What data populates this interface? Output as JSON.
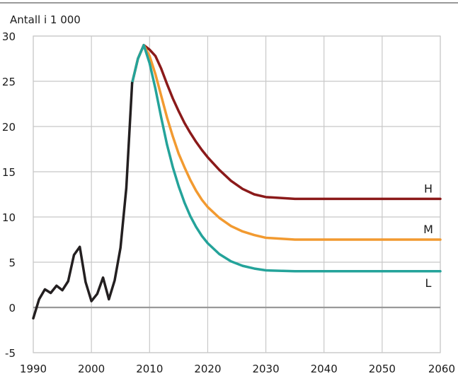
{
  "chart_data": {
    "type": "line",
    "unit_label": "Antall i 1 000",
    "xlim": [
      1990,
      2060
    ],
    "ylim": [
      -5,
      30
    ],
    "x_ticks": [
      1990,
      2000,
      2010,
      2020,
      2030,
      2040,
      2050,
      2060
    ],
    "y_ticks": [
      -5,
      0,
      5,
      10,
      15,
      20,
      25,
      30
    ],
    "grid": true,
    "colors": {
      "historical": "#231f20",
      "H": "#8b1a1a",
      "M": "#f29a30",
      "L": "#24a39a",
      "zero_line": "#999999",
      "grid": "#c8c8c8"
    },
    "series": [
      {
        "key": "historical",
        "points": [
          [
            1990,
            -1.2
          ],
          [
            1991,
            0.9
          ],
          [
            1992,
            2.0
          ],
          [
            1993,
            1.6
          ],
          [
            1994,
            2.4
          ],
          [
            1995,
            1.9
          ],
          [
            1996,
            2.9
          ],
          [
            1997,
            5.8
          ],
          [
            1998,
            6.7
          ],
          [
            1999,
            2.8
          ],
          [
            2000,
            0.7
          ],
          [
            2001,
            1.5
          ],
          [
            2002,
            3.3
          ],
          [
            2003,
            0.9
          ],
          [
            2004,
            3.0
          ],
          [
            2005,
            6.6
          ],
          [
            2006,
            13.2
          ],
          [
            2007,
            24.8
          ]
        ]
      },
      {
        "key": "H",
        "name": "H",
        "points": [
          [
            2007,
            24.8
          ],
          [
            2008,
            27.5
          ],
          [
            2009,
            29.0
          ],
          [
            2010,
            28.5
          ],
          [
            2011,
            27.8
          ],
          [
            2012,
            26.4
          ],
          [
            2013,
            24.7
          ],
          [
            2014,
            23.1
          ],
          [
            2015,
            21.7
          ],
          [
            2016,
            20.4
          ],
          [
            2017,
            19.3
          ],
          [
            2018,
            18.3
          ],
          [
            2019,
            17.4
          ],
          [
            2020,
            16.6
          ],
          [
            2022,
            15.2
          ],
          [
            2024,
            14.0
          ],
          [
            2026,
            13.1
          ],
          [
            2028,
            12.5
          ],
          [
            2030,
            12.2
          ],
          [
            2035,
            12.0
          ],
          [
            2040,
            12.0
          ],
          [
            2050,
            12.0
          ],
          [
            2060,
            12.0
          ]
        ]
      },
      {
        "key": "M",
        "name": "M",
        "points": [
          [
            2007,
            24.8
          ],
          [
            2008,
            27.5
          ],
          [
            2009,
            29.0
          ],
          [
            2010,
            27.8
          ],
          [
            2011,
            25.8
          ],
          [
            2012,
            23.4
          ],
          [
            2013,
            21.0
          ],
          [
            2014,
            18.9
          ],
          [
            2015,
            17.0
          ],
          [
            2016,
            15.5
          ],
          [
            2017,
            14.1
          ],
          [
            2018,
            12.9
          ],
          [
            2019,
            11.9
          ],
          [
            2020,
            11.1
          ],
          [
            2022,
            9.9
          ],
          [
            2024,
            9.0
          ],
          [
            2026,
            8.4
          ],
          [
            2028,
            8.0
          ],
          [
            2030,
            7.7
          ],
          [
            2035,
            7.5
          ],
          [
            2040,
            7.5
          ],
          [
            2050,
            7.5
          ],
          [
            2060,
            7.5
          ]
        ]
      },
      {
        "key": "L",
        "name": "L",
        "points": [
          [
            2007,
            24.8
          ],
          [
            2008,
            27.5
          ],
          [
            2009,
            29.0
          ],
          [
            2010,
            27.0
          ],
          [
            2011,
            24.2
          ],
          [
            2012,
            21.0
          ],
          [
            2013,
            18.0
          ],
          [
            2014,
            15.5
          ],
          [
            2015,
            13.4
          ],
          [
            2016,
            11.6
          ],
          [
            2017,
            10.1
          ],
          [
            2018,
            8.9
          ],
          [
            2019,
            7.9
          ],
          [
            2020,
            7.1
          ],
          [
            2022,
            5.9
          ],
          [
            2024,
            5.1
          ],
          [
            2026,
            4.6
          ],
          [
            2028,
            4.3
          ],
          [
            2030,
            4.1
          ],
          [
            2035,
            4.0
          ],
          [
            2040,
            4.0
          ],
          [
            2050,
            4.0
          ],
          [
            2060,
            4.0
          ]
        ]
      }
    ]
  }
}
